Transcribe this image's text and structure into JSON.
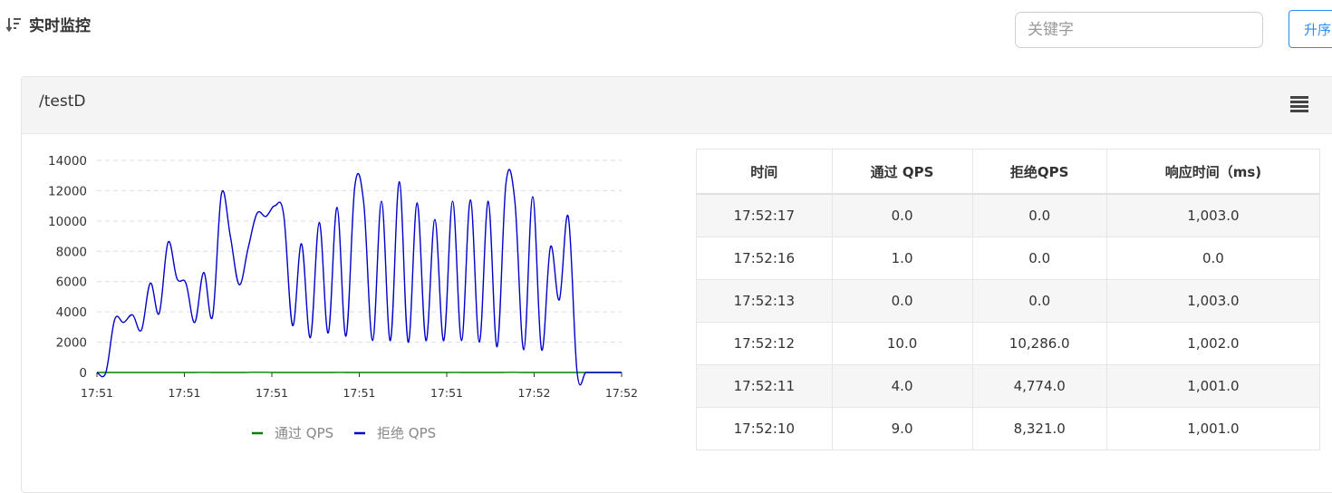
{
  "header": {
    "title": "实时监控"
  },
  "search": {
    "placeholder": "关键字"
  },
  "sort_button": {
    "label": "升序"
  },
  "panel": {
    "resource": "/testD"
  },
  "chart_data": {
    "type": "line",
    "title": "",
    "xlabel": "",
    "ylabel": "",
    "ylim": [
      0,
      14000
    ],
    "yticks": [
      0,
      2000,
      4000,
      6000,
      8000,
      10000,
      12000,
      14000
    ],
    "xticks": [
      "17:51",
      "17:51",
      "17:51",
      "17:51",
      "17:51",
      "17:52",
      "17:52"
    ],
    "grid": true,
    "legend": "bottom",
    "series": [
      {
        "name": "通过 QPS",
        "color": "#008000",
        "values": [
          0,
          0,
          1,
          0,
          1,
          0,
          2,
          1,
          0,
          1,
          0,
          1,
          3,
          1,
          0,
          2,
          1,
          4,
          10,
          9,
          1,
          0,
          1,
          2,
          0,
          1,
          0,
          3,
          1,
          0,
          2,
          1,
          0,
          1,
          0,
          1,
          2,
          0,
          1,
          0,
          3,
          1,
          0,
          1,
          0,
          2,
          4,
          10,
          1,
          0,
          1,
          0,
          0,
          0,
          0,
          0,
          0,
          0,
          0,
          0
        ]
      },
      {
        "name": "拒绝 QPS",
        "color": "#0000cc",
        "values": [
          0,
          0,
          3500,
          3300,
          3800,
          2800,
          5900,
          3900,
          8600,
          6200,
          5900,
          3300,
          6600,
          3700,
          11800,
          9000,
          5800,
          8200,
          10500,
          10300,
          11000,
          10400,
          3100,
          8500,
          2300,
          9900,
          2600,
          10900,
          2400,
          12300,
          11200,
          2100,
          11300,
          2100,
          12600,
          2000,
          11200,
          2100,
          10100,
          2100,
          11300,
          2100,
          11400,
          2000,
          11300,
          1700,
          12500,
          11300,
          1500,
          11600,
          1500,
          8300,
          4800,
          10300,
          0,
          0,
          0,
          0,
          0,
          0
        ]
      }
    ]
  },
  "table": {
    "headers": [
      "时间",
      "通过 QPS",
      "拒绝QPS",
      "响应时间（ms)"
    ],
    "rows": [
      [
        "17:52:17",
        "0.0",
        "0.0",
        "1,003.0"
      ],
      [
        "17:52:16",
        "1.0",
        "0.0",
        "0.0"
      ],
      [
        "17:52:13",
        "0.0",
        "0.0",
        "1,003.0"
      ],
      [
        "17:52:12",
        "10.0",
        "10,286.0",
        "1,002.0"
      ],
      [
        "17:52:11",
        "4.0",
        "4,774.0",
        "1,001.0"
      ],
      [
        "17:52:10",
        "9.0",
        "8,321.0",
        "1,001.0"
      ]
    ]
  }
}
